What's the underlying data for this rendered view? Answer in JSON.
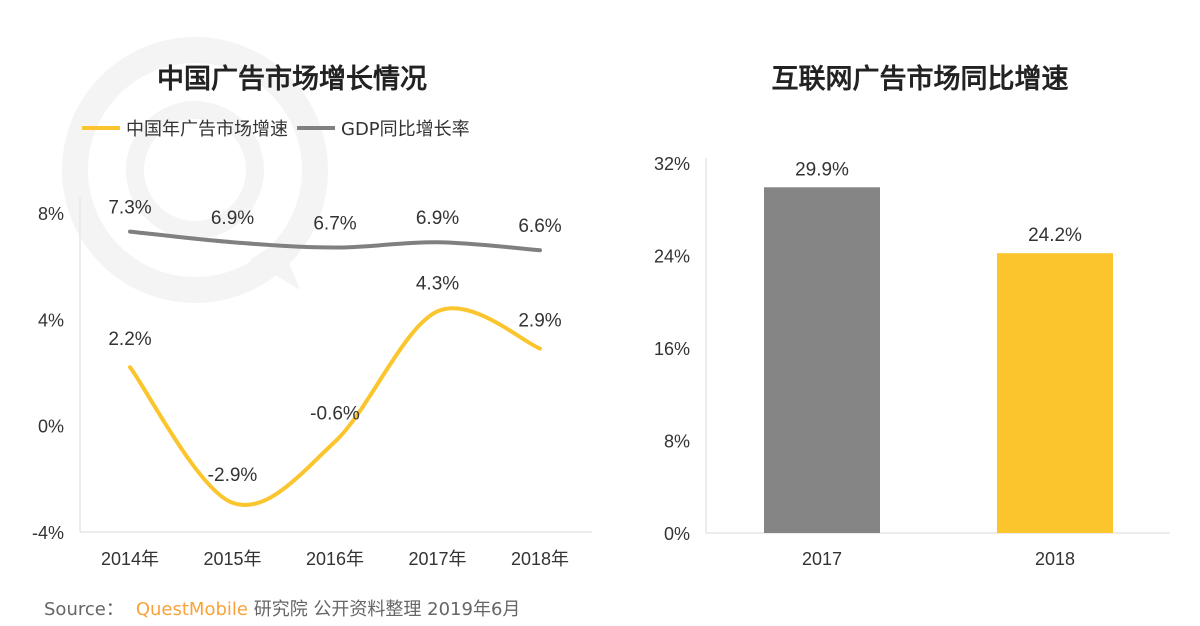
{
  "watermark": "QUESTMOBILE",
  "source": {
    "prefix": "Source：",
    "brand": "QuestMobile",
    "text": "研究院 公开资料整理 2019年6月"
  },
  "chart_data": [
    {
      "type": "line",
      "title": "中国广告市场增长情况",
      "categories": [
        "2014年",
        "2015年",
        "2016年",
        "2017年",
        "2018年"
      ],
      "series": [
        {
          "name": "中国年广告市场增速",
          "color": "#fbc52d",
          "values": [
            2.2,
            -2.9,
            -0.6,
            4.3,
            2.9
          ],
          "labels": [
            "2.2%",
            "-2.9%",
            "-0.6%",
            "4.3%",
            "2.9%"
          ]
        },
        {
          "name": "GDP同比增长率",
          "color": "#808080",
          "values": [
            7.3,
            6.9,
            6.7,
            6.9,
            6.6
          ],
          "labels": [
            "7.3%",
            "6.9%",
            "6.7%",
            "6.9%",
            "6.6%"
          ]
        }
      ],
      "ylim": [
        -4,
        8
      ],
      "yticks": [
        8,
        4,
        0,
        -4
      ],
      "ytick_labels": [
        "8%",
        "4%",
        "0%",
        "-4%"
      ],
      "legend": "top-left",
      "grid": false,
      "smooth": true
    },
    {
      "type": "bar",
      "title": "互联网广告市场同比增速",
      "categories": [
        "2017",
        "2018"
      ],
      "values": [
        29.9,
        24.2
      ],
      "labels": [
        "29.9%",
        "24.2%"
      ],
      "colors": [
        "#858585",
        "#fbc52d"
      ],
      "ylim": [
        0,
        32
      ],
      "yticks": [
        32,
        24,
        16,
        8,
        0
      ],
      "ytick_labels": [
        "32%",
        "24%",
        "16%",
        "8%",
        "0%"
      ],
      "grid": false
    }
  ]
}
